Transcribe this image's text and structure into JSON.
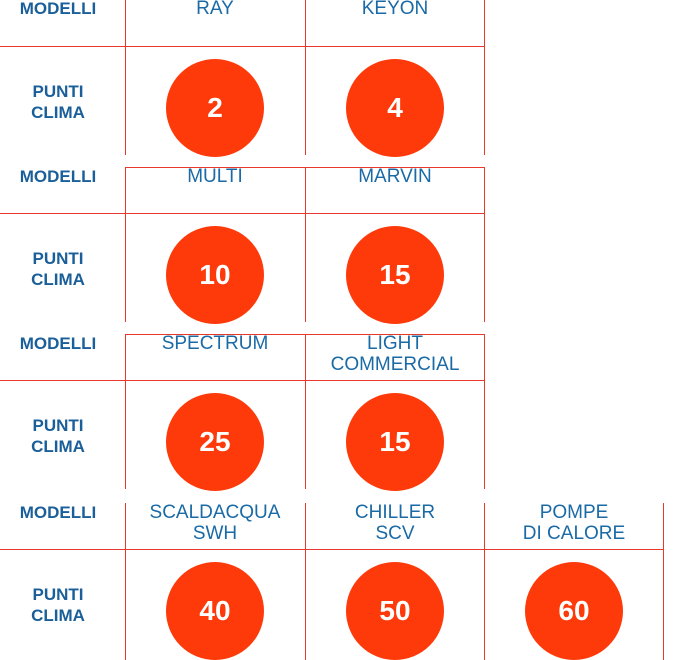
{
  "labels": {
    "models": "MODELLI",
    "points_line1": "PUNTI",
    "points_line2": "CLIMA"
  },
  "colors": {
    "accent": "#e8372b",
    "badge": "#fe3a0a",
    "text": "#1a6aa6"
  },
  "sections": [
    {
      "models": [
        {
          "line1": "RAY",
          "line2": ""
        },
        {
          "line1": "KEYON",
          "line2": ""
        }
      ],
      "points": [
        "2",
        "4"
      ]
    },
    {
      "models": [
        {
          "line1": "MULTI",
          "line2": ""
        },
        {
          "line1": "MARVIN",
          "line2": ""
        }
      ],
      "points": [
        "10",
        "15"
      ]
    },
    {
      "models": [
        {
          "line1": "SPECTRUM",
          "line2": ""
        },
        {
          "line1": "LIGHT",
          "line2": "COMMERCIAL"
        }
      ],
      "points": [
        "25",
        "15"
      ]
    },
    {
      "models": [
        {
          "line1": "SCALDACQUA",
          "line2": "SWH"
        },
        {
          "line1": "CHILLER",
          "line2": "SCV"
        },
        {
          "line1": "POMPE",
          "line2": "DI CALORE"
        }
      ],
      "points": [
        "40",
        "50",
        "60"
      ]
    }
  ]
}
